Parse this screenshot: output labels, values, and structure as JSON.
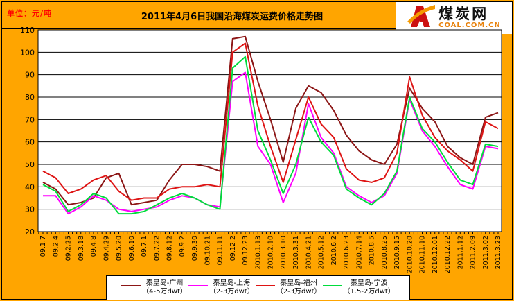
{
  "header": {
    "unit_label": "单位：元/吨",
    "title": "2011年4月6日我国沿海煤炭运费价格走势图",
    "logo": {
      "cn": "煤炭网",
      "en": "COAL.COM.CN"
    }
  },
  "colors": {
    "background": "#FFA500",
    "plot_background": "#FFFFFF",
    "grid": "#000000",
    "unit_text": "#FF0000",
    "logo_red": "#CC1111",
    "logo_orange": "#F59A00"
  },
  "chart_data": {
    "type": "line",
    "title": "2011年4月6日我国沿海煤炭运费价格走势图",
    "ylabel": "元/吨",
    "xlabel": "",
    "ylim": [
      20,
      110
    ],
    "yticks": [
      20,
      30,
      40,
      50,
      60,
      70,
      80,
      90,
      100,
      110
    ],
    "grid": "horizontal",
    "legend_position": "bottom",
    "categories": [
      "09.1.7",
      "09.2.4",
      "09.2.25",
      "09.3.18",
      "09.4.8",
      "09.4.29",
      "09.5.20",
      "09.6.10",
      "09.7.1",
      "09.7.22",
      "09.8.12",
      "09.9.2",
      "09.9.30",
      "09.10.21",
      "09.11.11",
      "09.12.2",
      "09.12.23",
      "2010.1.13",
      "2010.2.10",
      "2010.3.10",
      "2010.3.31",
      "2010.4.21",
      "2010.5.12",
      "2010.6.2",
      "2010.6.23",
      "2010.7.14",
      "2010.8.5",
      "2010.8.25",
      "2010.9.15",
      "2010.10.20",
      "2010.11.10",
      "2010.12.01",
      "2010.12.22",
      "2011.1.12",
      "2011.2.09",
      "2011.3.02",
      "2011.3.23"
    ],
    "series": [
      {
        "name": "秦皇岛-广州",
        "size": "（4-5万dwt）",
        "color": "#8C1616",
        "values": [
          42,
          39,
          32,
          33,
          35,
          44,
          46,
          32,
          33,
          34,
          43,
          50,
          50,
          49,
          47,
          106,
          107,
          87,
          70,
          51,
          75,
          85,
          82,
          74,
          63,
          56,
          52,
          50,
          59,
          84,
          75,
          69,
          58,
          53,
          50,
          71,
          73
        ]
      },
      {
        "name": "秦皇岛-上海",
        "size": "（2-3万dwt）",
        "color": "#FF00FF",
        "values": [
          36,
          36,
          28,
          31,
          36,
          34,
          30,
          29,
          30,
          31,
          34,
          36,
          35,
          32,
          31,
          87,
          91,
          58,
          50,
          33,
          46,
          77,
          62,
          55,
          40,
          36,
          33,
          36,
          46,
          79,
          65,
          58,
          49,
          41,
          39,
          58,
          57
        ]
      },
      {
        "name": "秦皇岛-福州",
        "size": "（2-3万dwt）",
        "color": "#DE1414",
        "values": [
          47,
          44,
          37,
          39,
          43,
          45,
          38,
          34,
          35,
          35,
          39,
          40,
          40,
          41,
          40,
          100,
          104,
          76,
          58,
          42,
          61,
          80,
          68,
          62,
          48,
          43,
          42,
          44,
          55,
          89,
          72,
          62,
          56,
          52,
          47,
          69,
          66
        ]
      },
      {
        "name": "秦皇岛-宁波",
        "size": "（1.5-2万dwt）",
        "color": "#00DC3C",
        "values": [
          41,
          38,
          29,
          32,
          37,
          35,
          28,
          28,
          29,
          32,
          35,
          37,
          35,
          32,
          30,
          93,
          98,
          65,
          52,
          37,
          50,
          71,
          60,
          54,
          39,
          35,
          32,
          37,
          47,
          80,
          66,
          60,
          51,
          43,
          41,
          59,
          58
        ]
      }
    ]
  }
}
